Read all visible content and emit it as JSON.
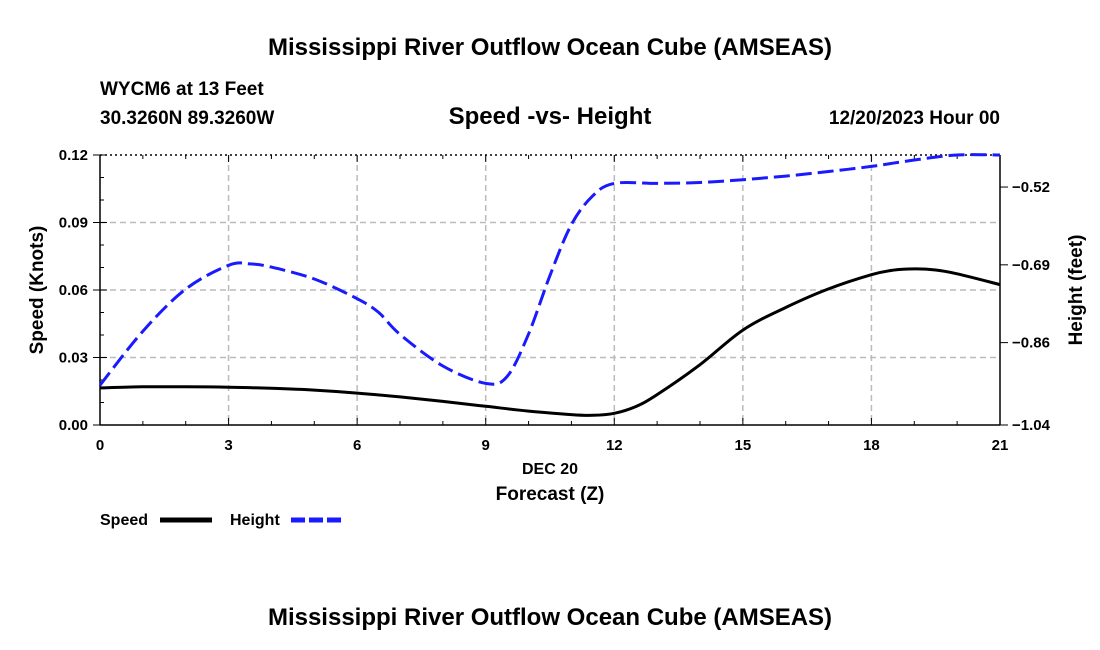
{
  "page": {
    "title": "Mississippi River Outflow Ocean Cube (AMSEAS)",
    "footer_title": "Mississippi River Outflow Ocean Cube (AMSEAS)"
  },
  "station": {
    "name": "WYCM6 at 13 Feet",
    "coords": "30.3260N  89.3260W"
  },
  "colors": {
    "speed": "#000000",
    "height": "#1a1aff",
    "grid": "#bbbbbb"
  },
  "chart_data": {
    "type": "line",
    "title": "Speed -vs- Height",
    "date_label": "12/20/2023 Hour 00",
    "xlabel_top": "DEC 20",
    "xlabel": "Forecast (Z)",
    "ylabel_left": "Speed (Knots)",
    "ylabel_right": "Height (feet)",
    "xlim": [
      0,
      21
    ],
    "ylim_left": [
      0,
      0.12
    ],
    "ylim_right": [
      -1.04,
      -0.45
    ],
    "x_ticks": [
      0,
      3,
      6,
      9,
      12,
      15,
      18,
      21
    ],
    "x_tick_labels": [
      "0",
      "3",
      "6",
      "9",
      "12",
      "15",
      "18",
      "21"
    ],
    "y_left_ticks": [
      0,
      0.03,
      0.06,
      0.09,
      0.12
    ],
    "y_left_tick_labels": [
      "0.00",
      "0.03",
      "0.06",
      "0.09",
      "0.12"
    ],
    "y_right_ticks": [
      -1.04,
      -0.86,
      -0.69,
      -0.52
    ],
    "y_right_tick_labels": [
      "−1.04",
      "−0.86",
      "−0.69",
      "−0.52"
    ],
    "grid": true,
    "legend": [
      {
        "label": "Speed",
        "style": "solid"
      },
      {
        "label": "Height",
        "style": "dashed"
      }
    ],
    "series": [
      {
        "name": "Speed",
        "axis": "left",
        "style": "solid",
        "x": [
          0,
          1,
          2,
          3,
          4,
          5,
          6,
          7,
          8,
          9,
          10,
          11,
          11.5,
          12,
          12.5,
          13,
          14,
          15,
          16,
          17,
          18,
          18.5,
          19,
          19.5,
          20,
          21
        ],
        "values": [
          0.0165,
          0.017,
          0.017,
          0.0168,
          0.0163,
          0.0155,
          0.0142,
          0.0125,
          0.0105,
          0.0083,
          0.0062,
          0.0046,
          0.0043,
          0.0052,
          0.0082,
          0.0135,
          0.0268,
          0.0422,
          0.0522,
          0.0605,
          0.0668,
          0.0688,
          0.0694,
          0.0689,
          0.0672,
          0.0624
        ]
      },
      {
        "name": "Height",
        "axis": "right",
        "style": "dashed",
        "x": [
          0,
          1,
          2,
          3,
          3.5,
          4,
          5,
          6,
          6.5,
          7,
          8,
          9,
          9.5,
          10,
          10.5,
          11,
          11.5,
          12,
          13,
          14,
          15,
          16,
          17,
          18,
          19,
          20,
          21
        ],
        "values": [
          -0.953,
          -0.835,
          -0.743,
          -0.691,
          -0.688,
          -0.695,
          -0.721,
          -0.764,
          -0.794,
          -0.842,
          -0.911,
          -0.949,
          -0.934,
          -0.841,
          -0.713,
          -0.602,
          -0.539,
          -0.512,
          -0.512,
          -0.51,
          -0.504,
          -0.496,
          -0.486,
          -0.475,
          -0.461,
          -0.447,
          -0.428
        ]
      }
    ]
  }
}
